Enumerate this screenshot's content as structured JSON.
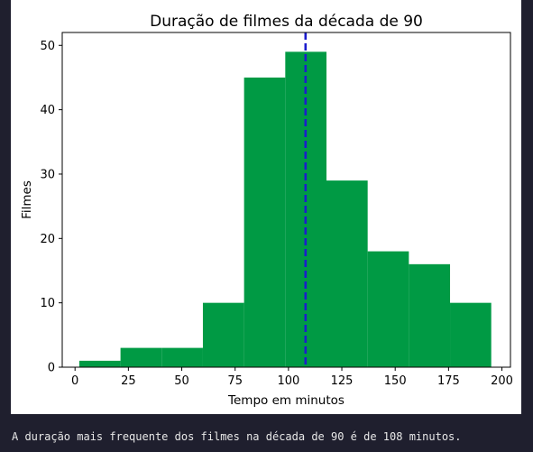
{
  "chart_data": {
    "type": "bar",
    "title": "Duração de filmes da década de 90",
    "xlabel": "Tempo em minutos",
    "ylabel": "Filmes",
    "xlim": [
      -6,
      204
    ],
    "ylim": [
      0,
      52
    ],
    "xticks": [
      0,
      25,
      50,
      75,
      100,
      125,
      150,
      175,
      200
    ],
    "yticks": [
      0,
      10,
      20,
      30,
      40,
      50
    ],
    "bin_edges": [
      2,
      21.3,
      40.6,
      59.9,
      79.2,
      98.5,
      117.8,
      137.1,
      156.4,
      175.7,
      195
    ],
    "values": [
      1,
      3,
      3,
      10,
      45,
      49,
      29,
      18,
      16,
      10
    ],
    "bar_color": "#009a44",
    "mean_line": {
      "x": 108,
      "color": "#1c1ccd",
      "style": "dashed"
    },
    "grid": false,
    "legend": "none"
  },
  "output": {
    "text": "A duração mais frequente dos filmes na década de 90 é de 108 minutos."
  }
}
